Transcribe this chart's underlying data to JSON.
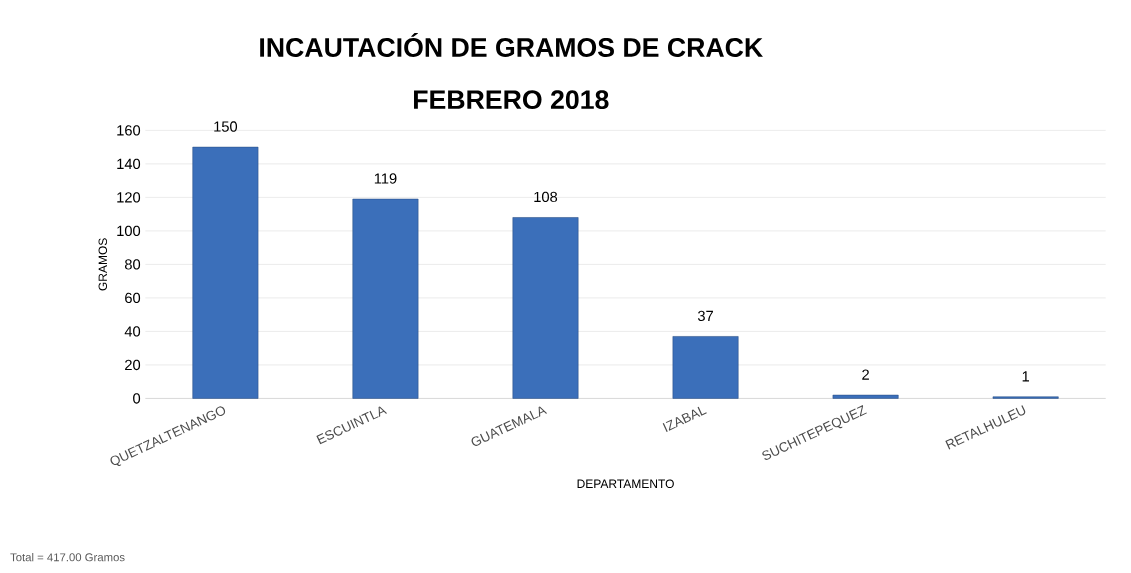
{
  "chart_data": {
    "type": "bar",
    "title": "INCAUTACIÓN DE GRAMOS DE CRACK",
    "subtitle": "FEBRERO 2018",
    "xlabel": "DEPARTAMENTO",
    "ylabel": "GRAMOS",
    "annotations": [
      "Total = 417.00 Gramos"
    ],
    "categories": [
      "QUETZALTENANGO",
      "ESCUINTLA",
      "GUATEMALA",
      "IZABAL",
      "SUCHITEPEQUEZ",
      "RETALHULEU"
    ],
    "values": [
      150,
      119,
      108,
      37,
      2,
      1
    ],
    "color": "#3b6fba",
    "ylim": [
      0,
      160
    ],
    "yticks": [
      0,
      20,
      40,
      60,
      80,
      100,
      120,
      140,
      160
    ],
    "grid": "y",
    "data_labels": true
  }
}
